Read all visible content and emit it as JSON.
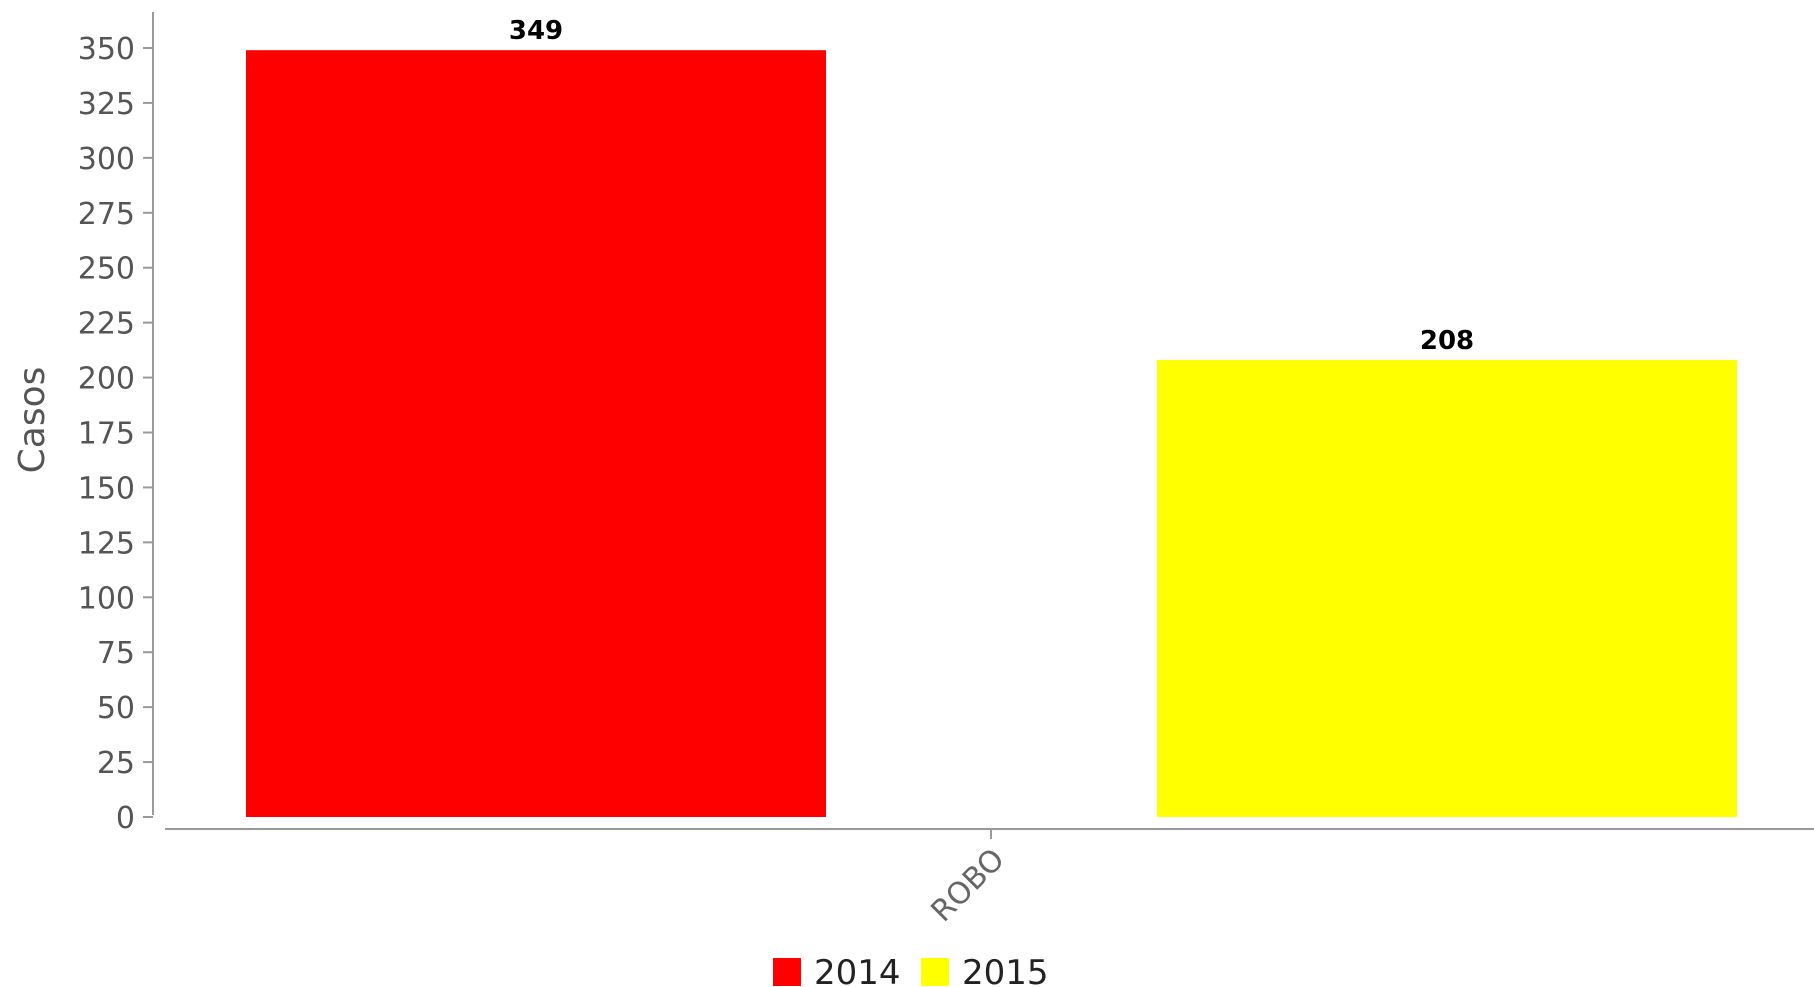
{
  "chart_data": {
    "type": "bar",
    "title": "",
    "xlabel": "",
    "ylabel": "Casos",
    "categories": [
      "ROBO"
    ],
    "series": [
      {
        "name": "2014",
        "values": [
          349
        ],
        "color": "#ff0000"
      },
      {
        "name": "2015",
        "values": [
          208
        ],
        "color": "#ffff00"
      }
    ],
    "ylim": [
      0,
      350
    ],
    "yticks": [
      0,
      25,
      50,
      75,
      100,
      125,
      150,
      175,
      200,
      225,
      250,
      275,
      300,
      325,
      350
    ],
    "grid": false,
    "legend_position": "bottom-center",
    "data_labels": true
  }
}
